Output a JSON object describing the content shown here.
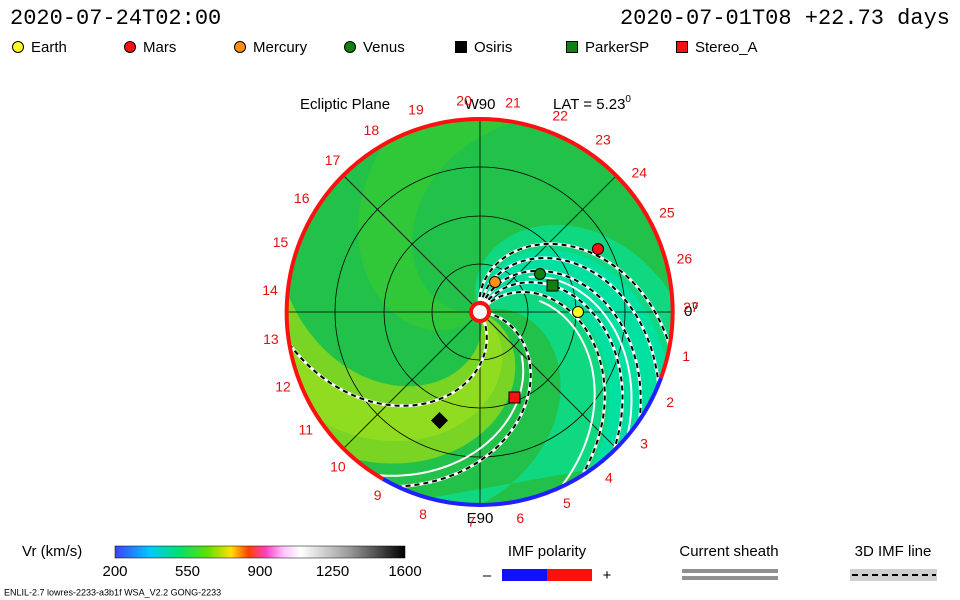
{
  "header": {
    "time": "2020-07-24T02:00",
    "run": "2020-07-01T08 +22.73 days"
  },
  "legend": {
    "items": [
      "Earth",
      "Mars",
      "Mercury",
      "Venus",
      "Osiris",
      "ParkerSP",
      "Stereo_A"
    ]
  },
  "plot": {
    "plane": "Ecliptic Plane",
    "top_label": "W90",
    "bottom_label": "E90",
    "lat": "LAT = 5.23",
    "lat_unit": "0",
    "zero_label": "0",
    "zero_unit": "0",
    "carrington": [
      1,
      2,
      3,
      4,
      5,
      6,
      7,
      8,
      9,
      10,
      11,
      12,
      13,
      14,
      15,
      16,
      17,
      18,
      19,
      20,
      21,
      22,
      23,
      24,
      25,
      26,
      27
    ]
  },
  "colorbar": {
    "label": "Vr (km/s)",
    "ticks": [
      200,
      550,
      900,
      1250,
      1600
    ]
  },
  "keys": {
    "imf": "IMF polarity",
    "minus": "–",
    "plus": "+",
    "sheath": "Current sheath",
    "imf_line": "3D IMF line"
  },
  "footer": "ENLIL-2.7 lowres-2233-a3b1f WSA_V2.2 GONG-2233"
}
